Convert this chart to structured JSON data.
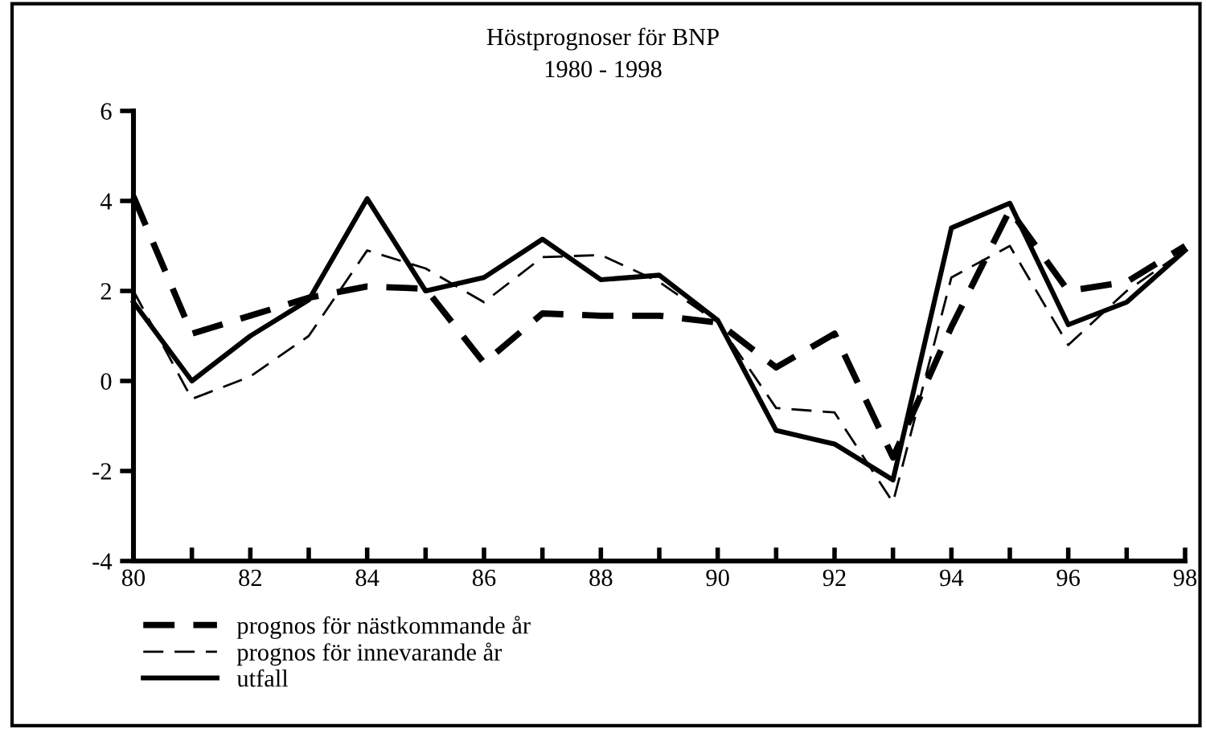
{
  "chart_data": {
    "type": "line",
    "title": "Höstprognoser för BNP",
    "subtitle": "1980 - 1998",
    "x": [
      80,
      81,
      82,
      83,
      84,
      85,
      86,
      87,
      88,
      89,
      90,
      91,
      92,
      93,
      94,
      95,
      96,
      97,
      98
    ],
    "xlim": [
      80,
      98
    ],
    "xticks": [
      80,
      {
        "value": 81,
        "label": null
      },
      82,
      {
        "value": 83,
        "label": null
      },
      84,
      {
        "value": 85,
        "label": null
      },
      86,
      {
        "value": 87,
        "label": null
      },
      88,
      {
        "value": 89,
        "label": null
      },
      90,
      {
        "value": 91,
        "label": null
      },
      92,
      {
        "value": 93,
        "label": null
      },
      94,
      {
        "value": 95,
        "label": null
      },
      96,
      {
        "value": 97,
        "label": null
      },
      98
    ],
    "ylim": [
      -4,
      6
    ],
    "yticks": [
      -4,
      -2,
      0,
      2,
      4,
      6
    ],
    "grid": false,
    "legend": "bottom left",
    "marker": "none",
    "series": [
      {
        "name": "prognos för nästkommande år",
        "color": "#000000",
        "line_style": "dashed",
        "values": [
          4.1,
          1.05,
          1.45,
          1.85,
          2.1,
          2.05,
          0.4,
          1.5,
          1.45,
          1.45,
          1.3,
          0.3,
          1.05,
          -1.7,
          1.2,
          3.8,
          2.0,
          2.2,
          3.0
        ]
      },
      {
        "name": "prognos för innevarande år",
        "color": "#000000",
        "line_style": "dashed",
        "values": [
          2.0,
          -0.4,
          0.1,
          1.0,
          2.9,
          2.5,
          1.75,
          2.75,
          2.8,
          2.2,
          1.3,
          -0.6,
          -0.7,
          -2.7,
          2.3,
          3.0,
          0.8,
          2.0,
          2.9
        ]
      },
      {
        "name": "utfall",
        "color": "#000000",
        "line_style": "solid",
        "values": [
          1.75,
          0.0,
          1.0,
          1.8,
          4.05,
          2.0,
          2.3,
          3.15,
          2.25,
          2.35,
          1.35,
          -1.1,
          -1.4,
          -2.2,
          3.4,
          3.95,
          1.25,
          1.75,
          2.9
        ]
      }
    ]
  }
}
